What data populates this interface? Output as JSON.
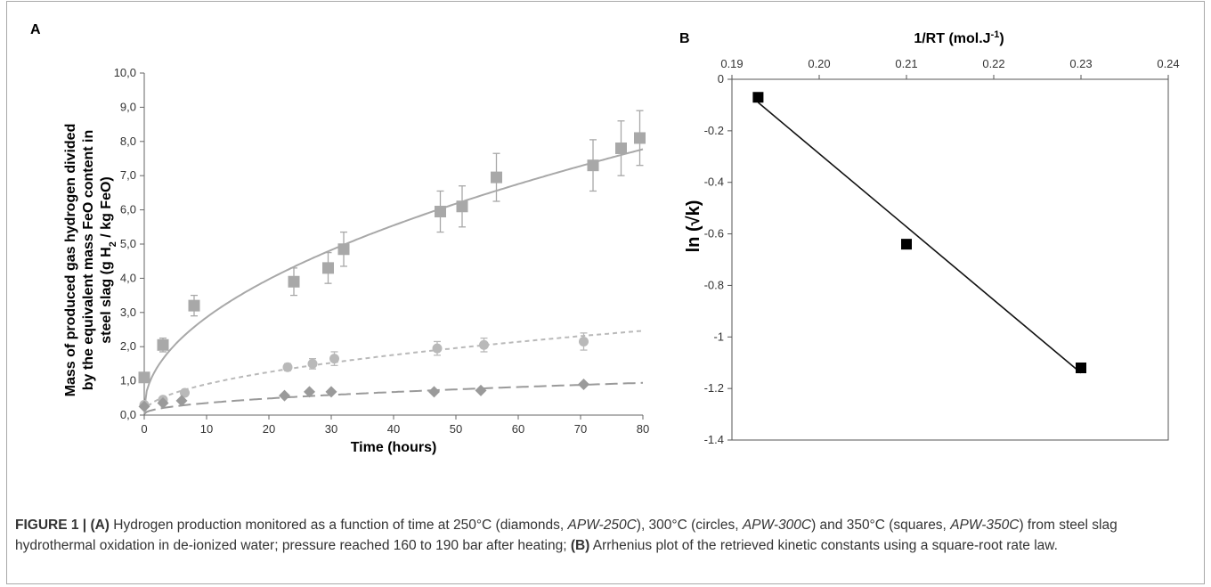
{
  "figure": {
    "caption": {
      "lead": "FIGURE 1 |",
      "a_ref": "(A)",
      "t1": " Hydrogen production monitored as a function of time at 250°C (diamonds, ",
      "i1": "APW-250C",
      "t2": "), 300°C (circles, ",
      "i2": "APW-300C",
      "t3": ") and 350°C (squares, ",
      "i3": "APW-350C",
      "t4": ") from steel slag hydrothermal oxidation in de-ionized water; pressure reached 160 to 190 bar after heating; ",
      "b_ref": "(B)",
      "t5": " Arrhenius plot of the retrieved kinetic constants using a square-root rate law."
    }
  },
  "chart_data": [
    {
      "panel_label": "A",
      "type": "scatter",
      "xlabel": "Time (hours)",
      "ylabel_lines": [
        "Mass of produced gas hydrogen divided",
        "by the equivalent mass FeO content in",
        "steel slag (g H",
        "2",
        " / kg FeO)"
      ],
      "xlim": [
        0,
        80
      ],
      "ylim": [
        0,
        10
      ],
      "x_ticks": [
        0,
        10,
        20,
        30,
        40,
        50,
        60,
        70,
        80
      ],
      "x_tick_labels": [
        "0",
        "10",
        "20",
        "30",
        "40",
        "50",
        "60",
        "70",
        "80"
      ],
      "y_ticks": [
        0,
        1,
        2,
        3,
        4,
        5,
        6,
        7,
        8,
        9,
        10
      ],
      "y_tick_labels": [
        "0,0",
        "1,0",
        "2,0",
        "3,0",
        "4,0",
        "5,0",
        "6,0",
        "7,0",
        "8,0",
        "9,0",
        "10,0"
      ],
      "grid": false,
      "colors": {
        "squares": "#a8a8a8",
        "circles": "#b9b9b9",
        "diamonds": "#9a9a9a"
      },
      "series": [
        {
          "marker": "square",
          "x": [
            0,
            3,
            8,
            24,
            29.5,
            32,
            47.5,
            51,
            56.5,
            72,
            76.5,
            79.5
          ],
          "y": [
            1.1,
            2.05,
            3.2,
            3.9,
            4.3,
            4.85,
            5.95,
            6.1,
            6.95,
            7.3,
            7.8,
            8.1
          ],
          "err": [
            0.0,
            0.2,
            0.3,
            0.4,
            0.45,
            0.5,
            0.6,
            0.6,
            0.7,
            0.75,
            0.8,
            0.8
          ],
          "fit": {
            "style": "solid",
            "a": 0.17,
            "b": 0.85
          }
        },
        {
          "marker": "circle",
          "x": [
            0,
            3,
            6.5,
            23,
            27,
            30.5,
            47,
            54.5,
            70.5
          ],
          "y": [
            0.3,
            0.45,
            0.65,
            1.4,
            1.5,
            1.65,
            1.95,
            2.05,
            2.15
          ],
          "err": [
            0.0,
            0.05,
            0.05,
            0.1,
            0.15,
            0.2,
            0.2,
            0.2,
            0.25
          ],
          "fit": {
            "style": "short-dash",
            "a": 0.05,
            "b": 0.27
          }
        },
        {
          "marker": "diamond",
          "x": [
            0,
            3,
            6,
            22.5,
            26.5,
            30,
            46.5,
            54,
            70.5
          ],
          "y": [
            0.25,
            0.35,
            0.42,
            0.57,
            0.68,
            0.68,
            0.68,
            0.72,
            0.9
          ],
          "err": [
            0,
            0,
            0,
            0,
            0,
            0,
            0,
            0,
            0
          ],
          "fit": {
            "style": "long-dash",
            "a": 0.03,
            "b": 0.102
          }
        }
      ]
    },
    {
      "panel_label": "B",
      "type": "scatter",
      "xlabel": "1/RT (mol.J",
      "xlabel_sup": "-1",
      "xlabel_end": ")",
      "ylabel": "ln (√k)",
      "xlim": [
        0.19,
        0.24
      ],
      "ylim": [
        -1.4,
        0
      ],
      "x_ticks": [
        0.19,
        0.2,
        0.21,
        0.22,
        0.23,
        0.24
      ],
      "x_tick_labels": [
        "0.19",
        "0.20",
        "0.21",
        "0.22",
        "0.23",
        "0.24"
      ],
      "y_ticks": [
        0,
        -0.2,
        -0.4,
        -0.6,
        -0.8,
        -1,
        -1.2,
        -1.4
      ],
      "y_tick_labels": [
        "0",
        "-0.2",
        "-0.4",
        "-0.6",
        "-0.8",
        "-1",
        "-1.2",
        "-1.4"
      ],
      "x_axis_position": "top",
      "grid": false,
      "series": [
        {
          "marker": "square",
          "x": [
            0.193,
            0.21,
            0.23
          ],
          "y": [
            -0.07,
            -0.64,
            -1.12
          ]
        }
      ],
      "trendline": {
        "x": [
          0.193,
          0.23
        ],
        "y": [
          -0.09,
          -1.14
        ]
      }
    }
  ]
}
